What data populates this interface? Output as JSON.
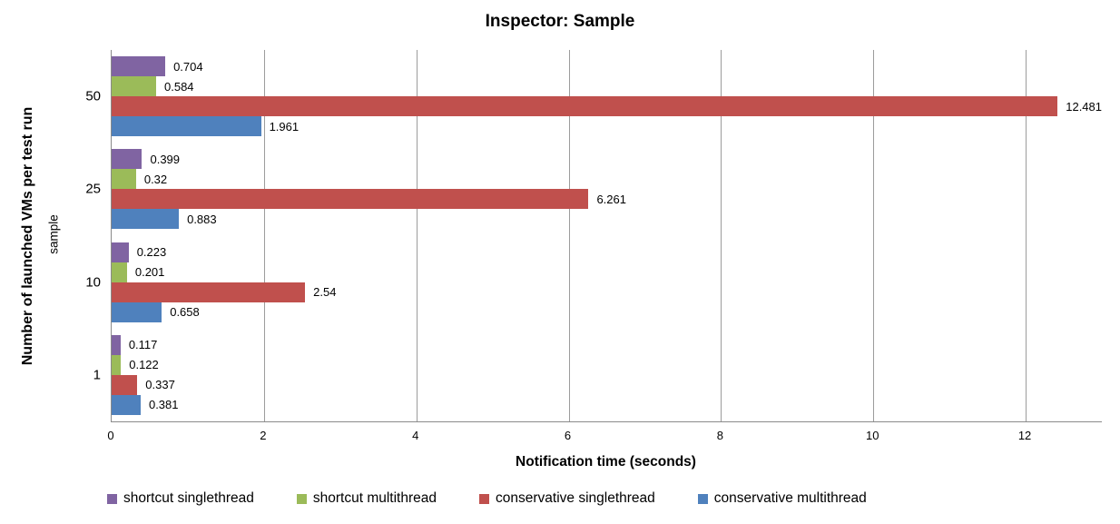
{
  "chart_data": {
    "type": "bar",
    "orientation": "horizontal",
    "title": "Inspector: Sample",
    "xlabel": "Notification time (seconds)",
    "ylabel": "Number of launched VMs per test run",
    "ylabel_secondary": "sample",
    "categories": [
      "50",
      "25",
      "10",
      "1"
    ],
    "series": [
      {
        "name": "shortcut singlethread",
        "color": "#8064A2",
        "values": [
          0.704,
          0.399,
          0.223,
          0.117
        ]
      },
      {
        "name": "shortcut multithread",
        "color": "#9BBB59",
        "values": [
          0.584,
          0.32,
          0.201,
          0.122
        ]
      },
      {
        "name": "conservative singlethread",
        "color": "#C0504D",
        "values": [
          12.481,
          6.261,
          2.54,
          0.337
        ]
      },
      {
        "name": "conservative multithread",
        "color": "#4F81BD",
        "values": [
          1.961,
          0.883,
          0.658,
          0.381
        ]
      }
    ],
    "xlim": [
      0,
      13
    ],
    "x_ticks": [
      0,
      2,
      4,
      6,
      8,
      10,
      12
    ],
    "grid": true,
    "legend_position": "bottom",
    "colors": {
      "grid": "#9c9c9c",
      "axis": "#8a8a8a",
      "text": "#000000",
      "background": "#ffffff"
    }
  }
}
